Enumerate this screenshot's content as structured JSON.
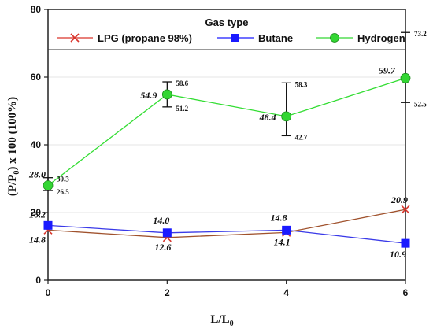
{
  "chart_data": {
    "type": "line",
    "title": "",
    "xlabel": "L/L",
    "xlabel_sub": "0",
    "ylabel_parts": [
      "(P/P",
      "0",
      ") x 100 (100%)"
    ],
    "xlim": [
      0,
      6
    ],
    "ylim": [
      0,
      80
    ],
    "x_ticks": [
      "0",
      "2",
      "4",
      "6"
    ],
    "y_ticks": [
      "0",
      "20",
      "40",
      "60",
      "80"
    ],
    "legend": {
      "title": "Gas type",
      "placement": "top"
    },
    "series": [
      {
        "name": "LPG (propane 98%)",
        "color": "#d9342b",
        "line_color": "#a0522d",
        "marker": "x",
        "x": [
          0,
          2,
          4,
          6
        ],
        "y": [
          14.8,
          12.6,
          14.1,
          20.9
        ],
        "labels": [
          "14.8",
          "12.6",
          "14.1",
          "20.9"
        ]
      },
      {
        "name": "Butane",
        "color": "#1a1aff",
        "line_color": "#3a3ae8",
        "marker": "square",
        "x": [
          0,
          2,
          4,
          6
        ],
        "y": [
          16.2,
          14.0,
          14.8,
          10.9
        ],
        "labels": [
          "16.2",
          "14.0",
          "14.8",
          "10.9"
        ]
      },
      {
        "name": "Hydrogen",
        "color": "#33d633",
        "line_color": "#33dd33",
        "marker": "circle",
        "x": [
          0,
          2,
          4,
          6
        ],
        "y": [
          28.0,
          54.9,
          48.4,
          59.7
        ],
        "labels": [
          "28.0",
          "54.9",
          "48.4",
          "59.7"
        ],
        "error_upper": [
          30.3,
          58.6,
          58.3,
          73.2
        ],
        "error_lower": [
          26.5,
          51.2,
          42.7,
          52.5
        ],
        "error_upper_labels": [
          "30.3",
          "58.6",
          "58.3",
          "73.2"
        ],
        "error_lower_labels": [
          "26.5",
          "51.2",
          "42.7",
          "52.5"
        ]
      }
    ]
  }
}
